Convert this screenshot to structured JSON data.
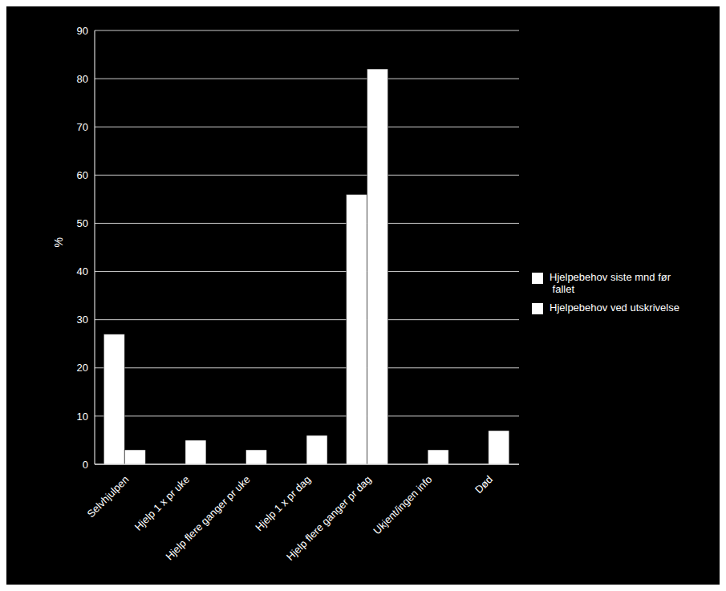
{
  "chart_data": {
    "type": "bar",
    "categories": [
      "Selvhjulpen",
      "Hjelp 1 x pr uke",
      "Hjelp flere ganger pr uke",
      "Hjelp 1 x pr dag",
      "Hjelp flere ganger pr dag",
      "Ukjent/ingen info",
      "Død"
    ],
    "series": [
      {
        "name": "Hjelpebehov siste mnd før\n fallet",
        "color": "#ffffff",
        "values": [
          27,
          0,
          0,
          0,
          56,
          0,
          0
        ]
      },
      {
        "name": "Hjelpebehov ved utskrivelse",
        "color": "#ffffff",
        "values": [
          3,
          5,
          3,
          6,
          82,
          3,
          7
        ]
      }
    ],
    "ylabel": "%",
    "ylim": [
      0,
      90
    ],
    "yticks": [
      0,
      10,
      20,
      30,
      40,
      50,
      60,
      70,
      80,
      90
    ],
    "grid": true,
    "legend": "right"
  }
}
